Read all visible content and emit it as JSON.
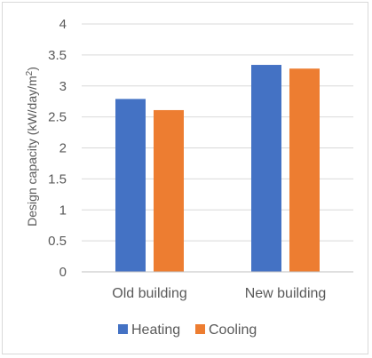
{
  "chart_data": {
    "type": "bar",
    "categories": [
      "Old building",
      "New building"
    ],
    "series": [
      {
        "name": "Heating",
        "values": [
          2.79,
          3.34
        ],
        "color": "#4472C4"
      },
      {
        "name": "Cooling",
        "values": [
          2.61,
          3.28
        ],
        "color": "#ED7D31"
      }
    ],
    "ylabel": "Design capacity (kW/day/m",
    "ylabel_superscript": "2",
    "ylabel_suffix": ")",
    "ylim": [
      0,
      4
    ],
    "yticks": [
      "0",
      "0.5",
      "1",
      "1.5",
      "2",
      "2.5",
      "3",
      "3.5",
      "4"
    ],
    "grid": true,
    "legend_position": "bottom",
    "gridline_color": "#d9d9d9",
    "axis_line_color": "#bfbfbf",
    "text_color": "#595959"
  }
}
